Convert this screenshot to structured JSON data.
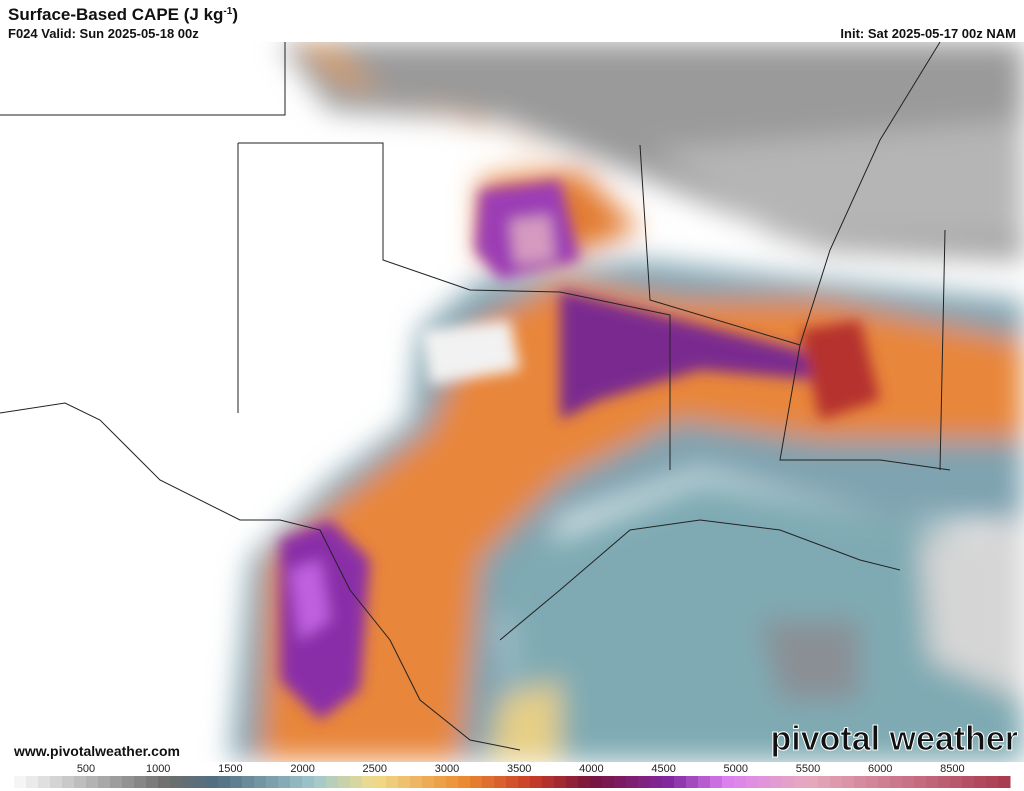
{
  "header": {
    "title": "Surface-Based CAPE (J kg",
    "title_sup": "-1",
    "title_end": ")",
    "valid": "F024 Valid: Sun 2025-05-18 00z",
    "init": "Init: Sat 2025-05-17 00z NAM"
  },
  "footer": {
    "website": "www.pivotalweather.com",
    "logo": "pivotal weather"
  },
  "colorbar": {
    "labels": [
      500,
      1000,
      1500,
      2000,
      2500,
      3000,
      3500,
      4000,
      4500,
      5000,
      5500,
      6000,
      8500
    ]
  }
}
